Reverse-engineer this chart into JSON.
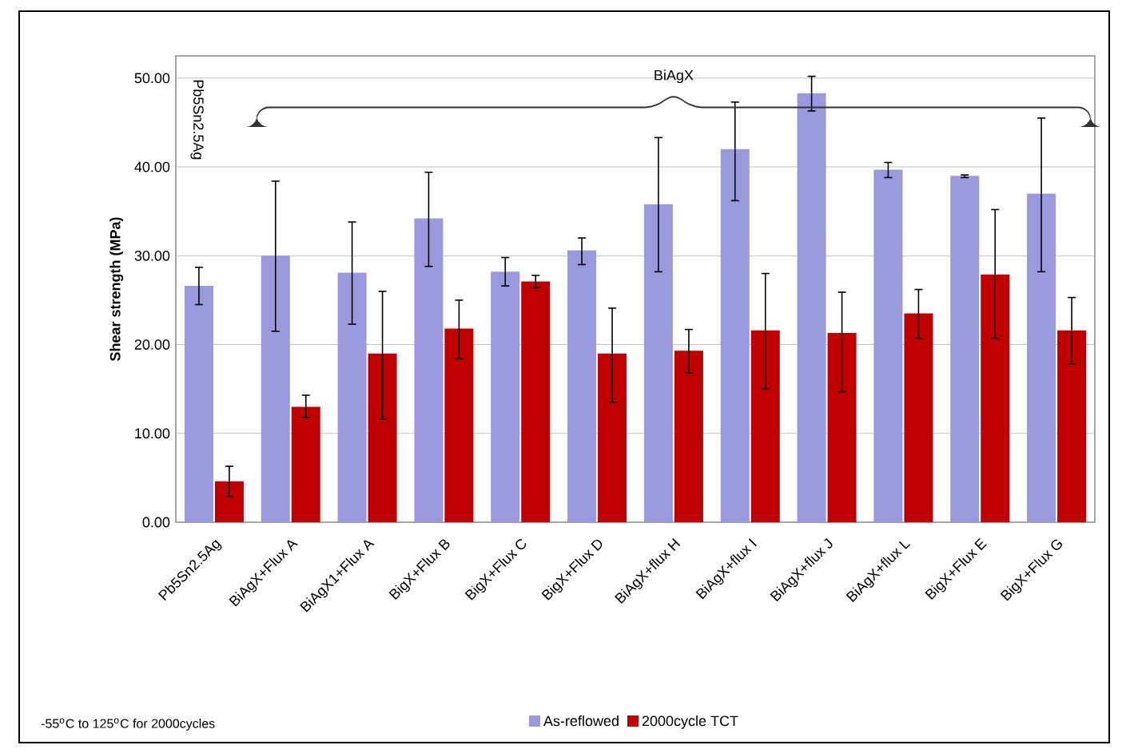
{
  "chart_data": {
    "type": "bar",
    "ylabel": "Shear strength (MPa)",
    "categories": [
      "Pb5Sn2.5Ag",
      "BiAgX+Flux A",
      "BiAgX1+Flux A",
      "BigX+Flux B",
      "BigX+Flux C",
      "BigX+Flux D",
      "BiAgX+flux H",
      "BiAgX+flux I",
      "BiAgX+flux J",
      "BiAgX+flux L",
      "BigX+Flux E",
      "BigX+Flux G"
    ],
    "series": [
      {
        "name": "As-reflowed",
        "color": "#9999dd",
        "values": [
          26.6,
          30.0,
          28.1,
          34.2,
          28.2,
          30.6,
          35.8,
          42.0,
          48.3,
          39.7,
          39.0,
          37.0
        ],
        "errors": [
          [
            24.5,
            28.7
          ],
          [
            21.5,
            38.4
          ],
          [
            22.3,
            33.8
          ],
          [
            28.8,
            39.4
          ],
          [
            26.6,
            29.8
          ],
          [
            29.0,
            32.0
          ],
          [
            28.2,
            43.3
          ],
          [
            36.2,
            47.3
          ],
          [
            46.3,
            50.2
          ],
          [
            38.8,
            40.5
          ],
          [
            38.8,
            39.1
          ],
          [
            28.2,
            45.5
          ]
        ]
      },
      {
        "name": "2000cycle TCT",
        "color": "#c00000",
        "values": [
          4.6,
          13.0,
          19.0,
          21.8,
          27.1,
          19.0,
          19.3,
          21.6,
          21.3,
          23.5,
          27.9,
          21.6
        ],
        "errors": [
          [
            2.9,
            6.3
          ],
          [
            11.8,
            14.3
          ],
          [
            11.6,
            26.0
          ],
          [
            18.4,
            25.0
          ],
          [
            26.4,
            27.8
          ],
          [
            13.5,
            24.1
          ],
          [
            16.8,
            21.7
          ],
          [
            15.0,
            28.0
          ],
          [
            14.7,
            25.9
          ],
          [
            20.7,
            26.2
          ],
          [
            20.7,
            35.2
          ],
          [
            17.8,
            25.3
          ]
        ]
      }
    ],
    "ylim": [
      0,
      52.5
    ],
    "yticks": [
      {
        "value": 0,
        "label": "0.00"
      },
      {
        "value": 10,
        "label": "10.00"
      },
      {
        "value": 20,
        "label": "20.00"
      },
      {
        "value": 30,
        "label": "30.00"
      },
      {
        "value": 40,
        "label": "40.00"
      },
      {
        "value": 50,
        "label": "50.00"
      }
    ],
    "grid": "y",
    "legend": "bottom",
    "annotations": [
      "BiAgX",
      "Pb5Sn2.5Ag",
      "-55$^{o}$C to 125$^{o}$C for 2000cycles"
    ]
  }
}
